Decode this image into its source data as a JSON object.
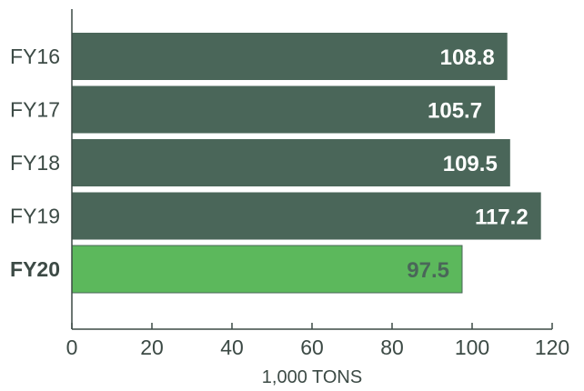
{
  "chart_data": {
    "type": "bar",
    "orientation": "horizontal",
    "categories": [
      "FY16",
      "FY17",
      "FY18",
      "FY19",
      "FY20"
    ],
    "values": [
      108.8,
      105.7,
      109.5,
      117.2,
      97.5
    ],
    "value_labels": [
      "108.8",
      "105.7",
      "109.5",
      "117.2",
      "97.5"
    ],
    "highlight_index": 4,
    "title": "",
    "xlabel": "1,000 TONS",
    "ylabel": "",
    "xlim": [
      0,
      120
    ],
    "x_ticks": [
      "0",
      "20",
      "40",
      "60",
      "80",
      "100",
      "120"
    ],
    "grid": false
  },
  "colors": {
    "bar": "#4a6659",
    "highlight_bar": "#5cb85c",
    "label_on_bar": "#ffffff",
    "label_on_highlight": "#4a6659",
    "axis": "#3c4a45"
  }
}
